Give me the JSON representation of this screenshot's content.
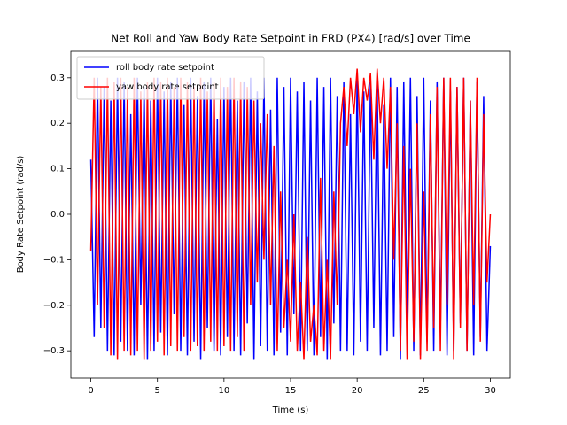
{
  "chart_data": {
    "type": "line",
    "title": "Net Roll and Yaw Body Rate Setpoint in FRD (PX4) [rad/s] over Time",
    "x_label": "Time (s)",
    "y_label": "Body Rate Setpoint (rad/s)",
    "xlim": [
      -1.5,
      31.5
    ],
    "ylim": [
      -0.36,
      0.358
    ],
    "xticks": [
      0,
      5,
      10,
      15,
      20,
      25,
      30
    ],
    "yticks": [
      {
        "value": -0.3,
        "label": "−0.3"
      },
      {
        "value": -0.2,
        "label": "−0.2"
      },
      {
        "value": -0.1,
        "label": "−0.1"
      },
      {
        "value": 0,
        "label": "0.0"
      },
      0.1,
      0.2,
      0.3
    ],
    "legend": "upper left",
    "x": [
      0,
      0.25,
      0.5,
      0.75,
      1,
      1.25,
      1.5,
      1.75,
      2,
      2.25,
      2.5,
      2.75,
      3,
      3.25,
      3.5,
      3.75,
      4,
      4.25,
      4.5,
      4.75,
      5,
      5.25,
      5.5,
      5.75,
      6,
      6.25,
      6.5,
      6.75,
      7,
      7.25,
      7.5,
      7.75,
      8,
      8.25,
      8.5,
      8.75,
      9,
      9.25,
      9.5,
      9.75,
      10,
      10.25,
      10.5,
      10.75,
      11,
      11.25,
      11.5,
      11.75,
      12,
      12.25,
      12.5,
      12.75,
      13,
      13.25,
      13.5,
      13.75,
      14,
      14.25,
      14.5,
      14.75,
      15,
      15.25,
      15.5,
      15.75,
      16,
      16.25,
      16.5,
      16.75,
      17,
      17.25,
      17.5,
      17.75,
      18,
      18.25,
      18.5,
      18.75,
      19,
      19.25,
      19.5,
      19.75,
      20,
      20.25,
      20.5,
      20.75,
      21,
      21.25,
      21.5,
      21.75,
      22,
      22.25,
      22.5,
      22.75,
      23,
      23.25,
      23.5,
      23.75,
      24,
      24.25,
      24.5,
      24.75,
      25,
      25.25,
      25.5,
      25.75,
      26,
      26.25,
      26.5,
      26.75,
      27,
      27.25,
      27.5,
      27.75,
      28,
      28.25,
      28.5,
      28.75,
      29,
      29.25,
      29.5,
      29.75,
      30
    ],
    "series": [
      {
        "name": "roll body rate setpoint",
        "color": "#0000ff",
        "values": [
          0.12,
          -0.27,
          0.3,
          -0.25,
          0.28,
          -0.3,
          0.25,
          -0.31,
          0.3,
          -0.28,
          0.29,
          -0.3,
          0.22,
          -0.31,
          0.3,
          -0.2,
          0.28,
          -0.32,
          0.25,
          -0.3,
          0.3,
          -0.26,
          0.27,
          -0.31,
          0.29,
          -0.22,
          0.3,
          -0.3,
          0.24,
          -0.31,
          0.3,
          -0.28,
          0.26,
          -0.32,
          0.29,
          -0.25,
          0.3,
          -0.3,
          0.21,
          -0.31,
          0.28,
          -0.27,
          0.3,
          -0.3,
          0.25,
          -0.31,
          0.29,
          -0.24,
          0.3,
          -0.32,
          0.27,
          -0.29,
          0.3,
          -0.3,
          0.23,
          -0.31,
          0.3,
          -0.26,
          0.28,
          -0.31,
          0.3,
          -0.22,
          0.27,
          -0.3,
          0.29,
          -0.3,
          0.25,
          -0.31,
          0.3,
          -0.27,
          0.28,
          -0.32,
          0.3,
          -0.24,
          0.26,
          -0.3,
          0.29,
          -0.3,
          0.22,
          -0.31,
          0.3,
          -0.28,
          0.27,
          -0.3,
          0.29,
          -0.25,
          0.3,
          -0.31,
          0.24,
          -0.3,
          0.3,
          -0.27,
          0.28,
          -0.32,
          0.29,
          -0.23,
          0.3,
          -0.3,
          0.26,
          -0.31,
          0.3,
          -0.28,
          0.25,
          -0.3,
          0.29,
          -0.26,
          0.3,
          -0.31,
          0.27,
          -0.3,
          0.28,
          -0.24,
          0.3,
          -0.3,
          0.25,
          -0.31,
          0.29,
          -0.27,
          0.26,
          -0.3,
          -0.07
        ]
      },
      {
        "name": "yaw body rate setpoint",
        "color": "#ff0000",
        "values": [
          -0.08,
          0.3,
          -0.2,
          0.28,
          -0.25,
          0.3,
          -0.31,
          0.29,
          -0.32,
          0.3,
          -0.3,
          0.28,
          -0.31,
          0.3,
          -0.3,
          0.27,
          -0.32,
          0.29,
          -0.3,
          0.3,
          -0.28,
          0.29,
          -0.31,
          0.3,
          -0.29,
          0.28,
          -0.3,
          0.3,
          -0.27,
          0.29,
          -0.3,
          0.28,
          -0.29,
          0.3,
          -0.3,
          0.27,
          -0.28,
          0.29,
          -0.3,
          0.3,
          -0.29,
          0.28,
          -0.3,
          0.3,
          -0.27,
          0.29,
          -0.3,
          0.28,
          -0.2,
          0.25,
          -0.15,
          0.2,
          -0.1,
          0.22,
          -0.2,
          0.15,
          -0.3,
          0.05,
          -0.25,
          -0.1,
          -0.28,
          0.0,
          -0.3,
          -0.15,
          -0.32,
          -0.05,
          -0.28,
          -0.2,
          -0.31,
          0.08,
          -0.3,
          -0.1,
          -0.32,
          0.05,
          -0.2,
          0.2,
          0.28,
          0.15,
          0.3,
          0.22,
          0.32,
          0.18,
          0.3,
          0.25,
          0.31,
          0.12,
          0.32,
          0.2,
          0.3,
          0.1,
          0.28,
          -0.1,
          0.2,
          -0.3,
          0.15,
          -0.32,
          0.1,
          -0.28,
          0.2,
          -0.32,
          0.05,
          -0.3,
          0.22,
          -0.25,
          0.28,
          -0.3,
          0.3,
          -0.2,
          0.3,
          -0.32,
          0.28,
          -0.25,
          0.3,
          -0.3,
          0.25,
          -0.2,
          0.3,
          -0.28,
          0.22,
          -0.15,
          0.0
        ]
      }
    ]
  }
}
